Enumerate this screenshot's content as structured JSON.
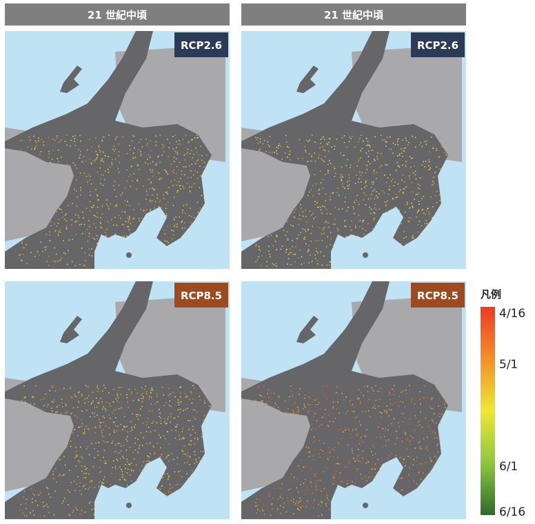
{
  "columns": [
    {
      "header": "21 世紀中頃"
    },
    {
      "header": "21 世紀中頃"
    }
  ],
  "panels": [
    {
      "badge": "RCP2.6"
    },
    {
      "badge": "RCP2.6"
    },
    {
      "badge": "RCP8.5"
    },
    {
      "badge": "RCP8.5"
    }
  ],
  "legend": {
    "title": "凡例",
    "labels": [
      "4/16",
      "5/1",
      "6/1",
      "6/16"
    ]
  }
}
